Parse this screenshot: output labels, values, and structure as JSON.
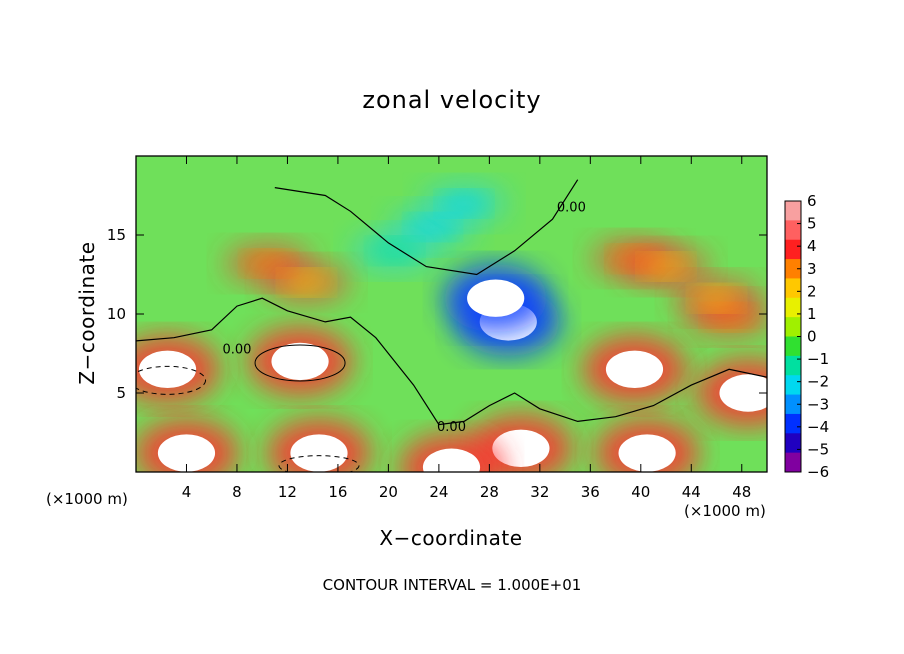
{
  "chart_data": {
    "type": "heatmap",
    "title": "zonal velocity",
    "xlabel": "X−coordinate",
    "ylabel": "Z−coordinate",
    "x_unit_left": "(×1000 m)",
    "x_unit_right": "(×1000 m)",
    "footnote": "CONTOUR INTERVAL = 1.000E+01",
    "xlim": [
      0,
      50
    ],
    "ylim": [
      0,
      20
    ],
    "x_ticks": [
      4,
      8,
      12,
      16,
      20,
      24,
      28,
      32,
      36,
      40,
      44,
      48
    ],
    "y_ticks": [
      5,
      10,
      15
    ],
    "colorbar": {
      "min": -6,
      "max": 6,
      "labels": [
        "6",
        "5",
        "4",
        "3",
        "2",
        "1",
        "0",
        "−1",
        "−2",
        "−3",
        "−4",
        "−5",
        "−6"
      ],
      "colors": [
        "#f8a0a0",
        "#ff6060",
        "#ff2020",
        "#ff8000",
        "#ffc800",
        "#e8f000",
        "#a0f000",
        "#30e030",
        "#00e0a0",
        "#00d8f0",
        "#0090ff",
        "#0030ff",
        "#2000c0",
        "#8000a0"
      ]
    },
    "contour_label": "0.00",
    "contour_interval": 10,
    "features": [
      {
        "x": 29.5,
        "z": 9.5,
        "value": -6
      },
      {
        "x": 28.5,
        "z": 11.0,
        "value": -6
      },
      {
        "x": 13.0,
        "z": 7.0,
        "value": 6
      },
      {
        "x": 2.5,
        "z": 6.5,
        "value": 6
      },
      {
        "x": 4.0,
        "z": 1.2,
        "value": 6
      },
      {
        "x": 14.5,
        "z": 1.2,
        "value": 6
      },
      {
        "x": 30.5,
        "z": 1.5,
        "value": 6
      },
      {
        "x": 39.5,
        "z": 6.5,
        "value": 6
      },
      {
        "x": 40.5,
        "z": 1.2,
        "value": 6
      },
      {
        "x": 48.5,
        "z": 5.0,
        "value": 6
      },
      {
        "x": 25.0,
        "z": 0.3,
        "value": 6
      },
      {
        "x": 23.5,
        "z": 15.5,
        "value": -2
      },
      {
        "x": 26.0,
        "z": 17.0,
        "value": -2
      },
      {
        "x": 20.5,
        "z": 14.0,
        "value": -1.5
      },
      {
        "x": 10.5,
        "z": 13.2,
        "value": 3
      },
      {
        "x": 13.5,
        "z": 12.0,
        "value": 2.5
      },
      {
        "x": 39.5,
        "z": 13.5,
        "value": 3
      },
      {
        "x": 42.0,
        "z": 13.0,
        "value": 2.5
      },
      {
        "x": 47.0,
        "z": 9.8,
        "value": 3.5
      },
      {
        "x": 46.0,
        "z": 11.0,
        "value": 2
      }
    ]
  }
}
